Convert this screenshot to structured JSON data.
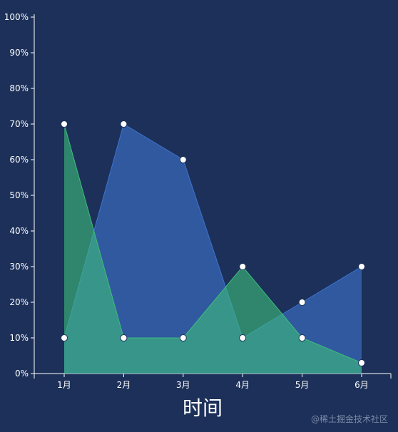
{
  "chart_data": {
    "type": "area",
    "categories": [
      "1月",
      "2月",
      "3月",
      "4月",
      "5月",
      "6月"
    ],
    "series": [
      {
        "values": [
          10,
          70,
          60,
          10,
          20,
          30
        ],
        "color": "#3d74d0"
      },
      {
        "values": [
          70,
          10,
          10,
          30,
          10,
          3
        ],
        "color": "#3cbf7a"
      }
    ],
    "xlabel": "时间",
    "ylim": [
      0,
      100
    ],
    "yticks": [
      "0%",
      "10%",
      "20%",
      "30%",
      "40%",
      "50%",
      "60%",
      "70%",
      "80%",
      "90%",
      "100%"
    ],
    "grid": false
  },
  "watermark": "@稀土掘金技术社区"
}
